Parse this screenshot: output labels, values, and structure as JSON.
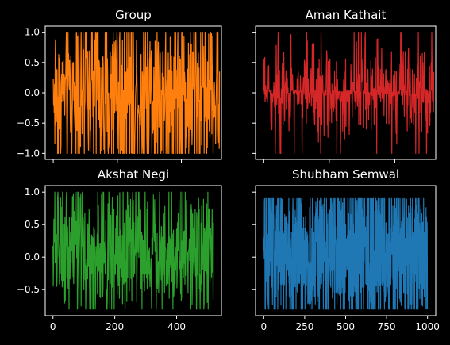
{
  "chart_data": [
    {
      "type": "line",
      "title": "Group",
      "color": "#ff7f0e",
      "xlim": [
        -25,
        525
      ],
      "ylim": [
        -1.1,
        1.1
      ],
      "xticks": [
        0,
        200,
        400
      ],
      "yticks": [
        -1.0,
        -0.5,
        0.0,
        0.5,
        1.0
      ],
      "show_xtick_labels": false,
      "show_ytick_labels": true,
      "samples": 520,
      "series_range": [
        -1.0,
        1.0
      ],
      "density": "dense"
    },
    {
      "type": "line",
      "title": "Aman Kathait",
      "color": "#d62728",
      "xlim": [
        -25,
        525
      ],
      "ylim": [
        -1.1,
        1.1
      ],
      "xticks": [
        0,
        200,
        400
      ],
      "yticks": [
        -1.0,
        -0.5,
        0.0,
        0.5,
        1.0
      ],
      "show_xtick_labels": false,
      "show_ytick_labels": false,
      "samples": 520,
      "series_range": [
        -1.0,
        1.0
      ],
      "density": "sparse"
    },
    {
      "type": "line",
      "title": "Akshat Negi",
      "color": "#2ca02c",
      "xlim": [
        -25,
        545
      ],
      "ylim": [
        -0.9,
        1.1
      ],
      "xticks": [
        0,
        200,
        400
      ],
      "yticks": [
        -0.5,
        0.0,
        0.5,
        1.0
      ],
      "show_xtick_labels": true,
      "show_ytick_labels": true,
      "samples": 520,
      "series_range": [
        -0.8,
        1.0
      ],
      "density": "medium"
    },
    {
      "type": "line",
      "title": "Shubham Semwal",
      "color": "#1f77b4",
      "xlim": [
        -50,
        1050
      ],
      "ylim": [
        -0.9,
        1.1
      ],
      "xticks": [
        0,
        250,
        500,
        750,
        1000
      ],
      "yticks": [
        -0.5,
        0.0,
        0.5,
        1.0
      ],
      "show_xtick_labels": true,
      "show_ytick_labels": false,
      "samples": 1000,
      "series_range": [
        -0.8,
        0.9
      ],
      "density": "dense"
    }
  ]
}
